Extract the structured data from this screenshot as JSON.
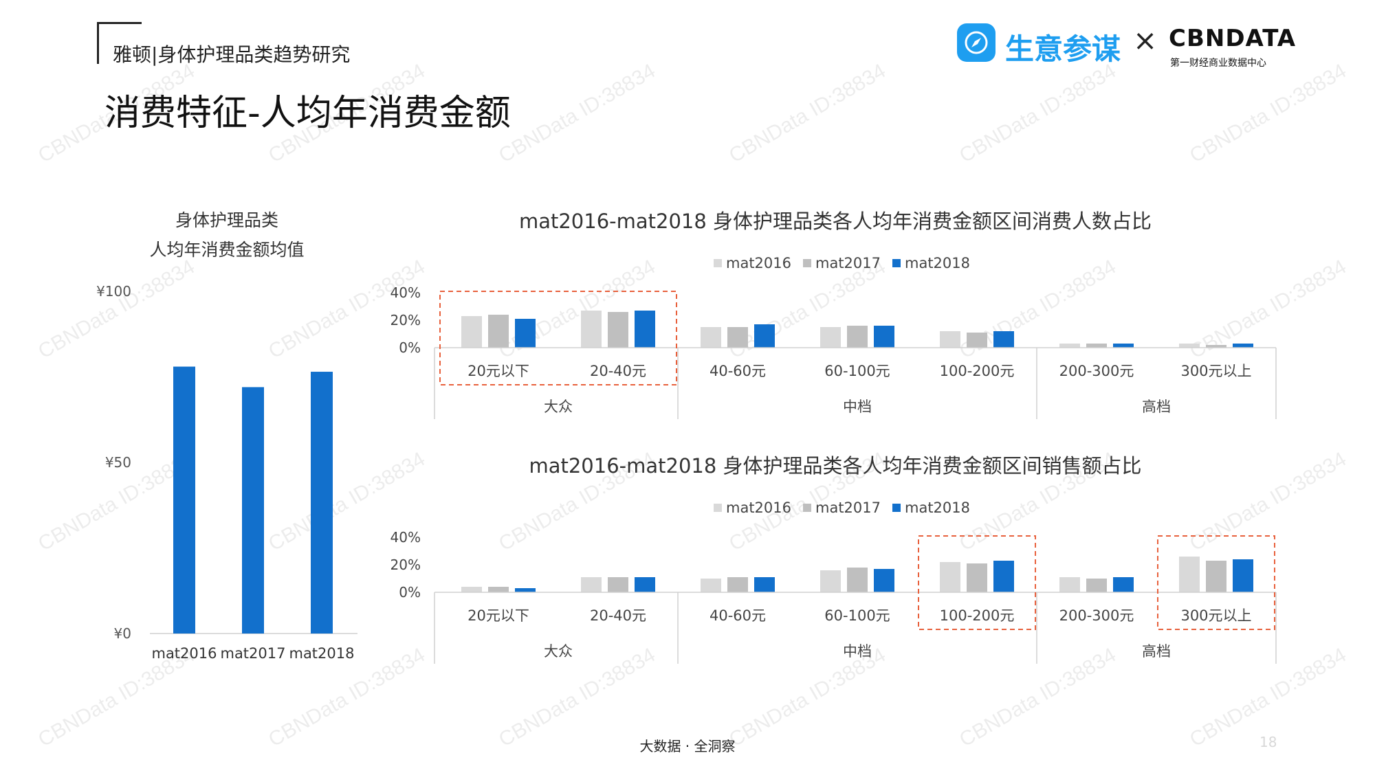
{
  "header": {
    "title": "雅顿|身体护理品类趋势研究"
  },
  "page_title": "消费特征-人均年消费金额",
  "brand": {
    "name": "生意参谋",
    "cross": "×",
    "partner": "CBNDATA",
    "partner_sub": "第一财经商业数据中心",
    "icon": "compass-icon"
  },
  "watermark": "CBNData ID:38834",
  "footer": {
    "text": "大数据 · 全洞察",
    "page_number": "18"
  },
  "colors": {
    "mat2016": "#d9d9d9",
    "mat2017": "#bfbfbf",
    "mat2018": "#1270cc",
    "highlight": "#e8603c",
    "axis": "#d0d0d0"
  },
  "chart_data": [
    {
      "id": "avg_chart",
      "type": "bar",
      "title": "身体护理品类\n人均年消费金额均值",
      "title_lines": [
        "身体护理品类",
        "人均年消费金额均值"
      ],
      "categories": [
        "mat2016",
        "mat2017",
        "mat2018"
      ],
      "values": [
        78,
        72,
        76.5
      ],
      "ylim": [
        0,
        100
      ],
      "yticks": [
        "¥0",
        "¥50",
        "¥100"
      ],
      "ytick_values": [
        0,
        50,
        100
      ],
      "grid": false,
      "legend": "none"
    },
    {
      "id": "people_share",
      "type": "bar",
      "title": "mat2016-mat2018 身体护理品类各人均年消费金额区间消费人数占比",
      "categories": [
        "20元以下",
        "20-40元",
        "40-60元",
        "60-100元",
        "100-200元",
        "200-300元",
        "300元以上"
      ],
      "groups": [
        {
          "label": "大众",
          "span": [
            0,
            1
          ]
        },
        {
          "label": "中档",
          "span": [
            2,
            4
          ]
        },
        {
          "label": "高档",
          "span": [
            5,
            6
          ]
        }
      ],
      "series": [
        {
          "name": "mat2016",
          "values": [
            0.23,
            0.27,
            0.15,
            0.15,
            0.12,
            0.03,
            0.03
          ]
        },
        {
          "name": "mat2017",
          "values": [
            0.24,
            0.26,
            0.15,
            0.16,
            0.11,
            0.03,
            0.02
          ]
        },
        {
          "name": "mat2018",
          "values": [
            0.21,
            0.27,
            0.17,
            0.16,
            0.12,
            0.03,
            0.03
          ]
        }
      ],
      "yticks": [
        "0%",
        "20%",
        "40%"
      ],
      "ytick_values": [
        0,
        0.2,
        0.4
      ],
      "ylim": [
        0,
        0.4
      ],
      "highlight": [
        [
          0,
          1
        ]
      ],
      "legend": "top-center"
    },
    {
      "id": "sales_share",
      "type": "bar",
      "title": "mat2016-mat2018 身体护理品类各人均年消费金额区间销售额占比",
      "categories": [
        "20元以下",
        "20-40元",
        "40-60元",
        "60-100元",
        "100-200元",
        "200-300元",
        "300元以上"
      ],
      "groups": [
        {
          "label": "大众",
          "span": [
            0,
            1
          ]
        },
        {
          "label": "中档",
          "span": [
            2,
            4
          ]
        },
        {
          "label": "高档",
          "span": [
            5,
            6
          ]
        }
      ],
      "series": [
        {
          "name": "mat2016",
          "values": [
            0.04,
            0.11,
            0.1,
            0.16,
            0.22,
            0.11,
            0.26
          ]
        },
        {
          "name": "mat2017",
          "values": [
            0.04,
            0.11,
            0.11,
            0.18,
            0.21,
            0.1,
            0.23
          ]
        },
        {
          "name": "mat2018",
          "values": [
            0.03,
            0.11,
            0.11,
            0.17,
            0.23,
            0.11,
            0.24
          ]
        }
      ],
      "yticks": [
        "0%",
        "20%",
        "40%"
      ],
      "ytick_values": [
        0,
        0.2,
        0.4
      ],
      "ylim": [
        0,
        0.4
      ],
      "highlight": [
        [
          4,
          4
        ],
        [
          6,
          6
        ]
      ],
      "legend": "top-center"
    }
  ]
}
